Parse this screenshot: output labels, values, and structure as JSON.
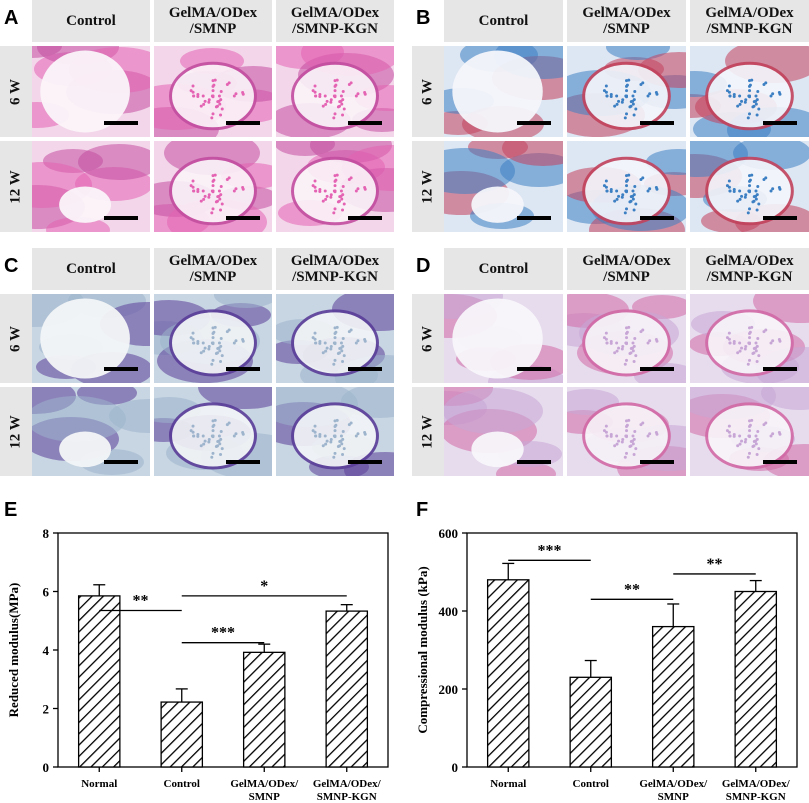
{
  "histology_panels": [
    {
      "label": "A",
      "stain": "he",
      "columns": [
        "Control",
        "GelMA/ODex\n/SMNP",
        "GelMA/ODex\n/SMNP-KGN"
      ],
      "rows": [
        "6 W",
        "12 W"
      ],
      "colors": {
        "bg": "#f3d6ea",
        "tissue": "#e463b3",
        "accent": "#c34ea0",
        "void": "#fbf4f9"
      }
    },
    {
      "label": "B",
      "stain": "masson",
      "columns": [
        "Control",
        "GelMA/ODex\n/SMNP",
        "GelMA/ODex\n/SMNP-KGN"
      ],
      "rows": [
        "6 W",
        "12 W"
      ],
      "colors": {
        "bg": "#dde6f3",
        "tissue": "#3c7fc2",
        "accent": "#c2425c",
        "void": "#f4f6fb"
      }
    },
    {
      "label": "C",
      "stain": "toluidine",
      "columns": [
        "Control",
        "GelMA/ODex\n/SMNP",
        "GelMA/ODex\n/SMNP-KGN"
      ],
      "rows": [
        "6 W",
        "12 W"
      ],
      "colors": {
        "bg": "#c8d6e3",
        "tissue": "#9db4cc",
        "accent": "#5b3e99",
        "void": "#f3f5f7"
      }
    },
    {
      "label": "D",
      "stain": "safranin",
      "columns": [
        "Control",
        "GelMA/ODex\n/SMNP",
        "GelMA/ODex\n/SMNP-KGN"
      ],
      "rows": [
        "6 W",
        "12 W"
      ],
      "colors": {
        "bg": "#e7dcee",
        "tissue": "#c7a6d6",
        "accent": "#d26aa6",
        "void": "#f8f5fa"
      }
    }
  ],
  "chart_data": [
    {
      "panel": "E",
      "type": "bar",
      "categories": [
        "Normal",
        "Control",
        "GelMA/ODex/\nSMNP",
        "GelMA/ODex/\nSMNP-KGN"
      ],
      "values": [
        5.85,
        2.22,
        3.92,
        5.33
      ],
      "errors": [
        0.38,
        0.45,
        0.28,
        0.22
      ],
      "ylabel": "Reduced modulus(MPa)",
      "ylim": [
        0,
        8
      ],
      "yticks": [
        "0",
        "2",
        "4",
        "6",
        "8"
      ],
      "significance": [
        {
          "from": 0,
          "to": 1,
          "label": "**",
          "level": 5.35
        },
        {
          "from": 1,
          "to": 2,
          "label": "***",
          "level": 4.25
        },
        {
          "from": 1,
          "to": 3,
          "label": "*",
          "level": 5.85
        }
      ]
    },
    {
      "panel": "F",
      "type": "bar",
      "categories": [
        "Normal",
        "Control",
        "GelMA/ODex/\nSMNP",
        "GelMA/ODex/\nSMNP-KGN"
      ],
      "values": [
        480,
        230,
        360,
        450
      ],
      "errors": [
        42,
        43,
        58,
        28
      ],
      "ylabel": "Compressional modulus (kPa)",
      "ylim": [
        0,
        600
      ],
      "yticks": [
        "0",
        "200",
        "400",
        "600"
      ],
      "significance": [
        {
          "from": 0,
          "to": 1,
          "label": "***",
          "level": 530
        },
        {
          "from": 1,
          "to": 2,
          "label": "**",
          "level": 430
        },
        {
          "from": 2,
          "to": 3,
          "label": "**",
          "level": 495
        }
      ]
    }
  ]
}
